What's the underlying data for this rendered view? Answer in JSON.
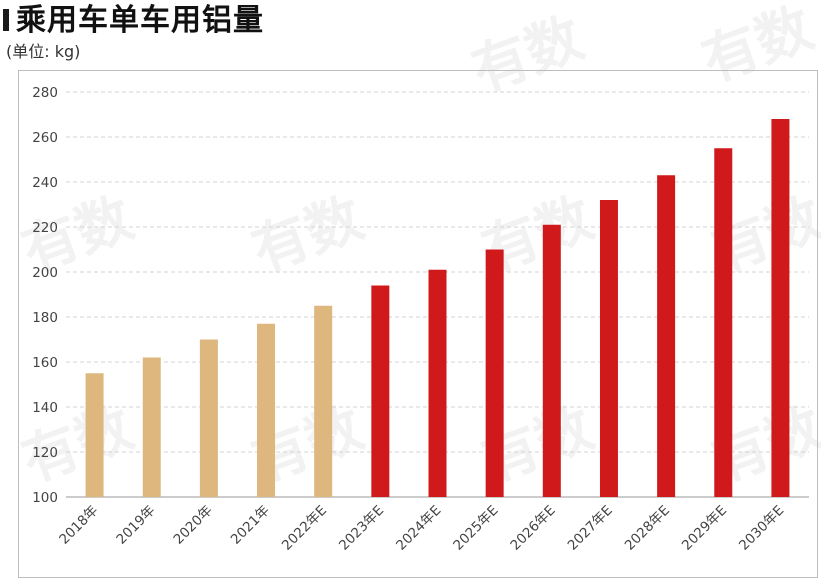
{
  "title": "乘用车单车用铝量",
  "unit_label": "(单位: kg)",
  "watermark": "有数",
  "colors": {
    "actual": "#DDB77E",
    "forecast": "#D0191B"
  },
  "chart_data": {
    "type": "bar",
    "title": "乘用车单车用铝量",
    "ylabel": "(单位: kg)",
    "xlabel": "",
    "ylim": [
      100,
      280
    ],
    "yticks": [
      100,
      120,
      140,
      160,
      180,
      200,
      220,
      240,
      260,
      280
    ],
    "grid": true,
    "categories": [
      "2018年",
      "2019年",
      "2020年",
      "2021年",
      "2022年E",
      "2023年E",
      "2024年E",
      "2025年E",
      "2026年E",
      "2027年E",
      "2028年E",
      "2029年E",
      "2030年E"
    ],
    "values": [
      155,
      162,
      170,
      177,
      185,
      194,
      201,
      210,
      221,
      232,
      243,
      255,
      268
    ],
    "bar_colors": [
      "#DDB77E",
      "#DDB77E",
      "#DDB77E",
      "#DDB77E",
      "#DDB77E",
      "#D0191B",
      "#D0191B",
      "#D0191B",
      "#D0191B",
      "#D0191B",
      "#D0191B",
      "#D0191B",
      "#D0191B"
    ]
  }
}
